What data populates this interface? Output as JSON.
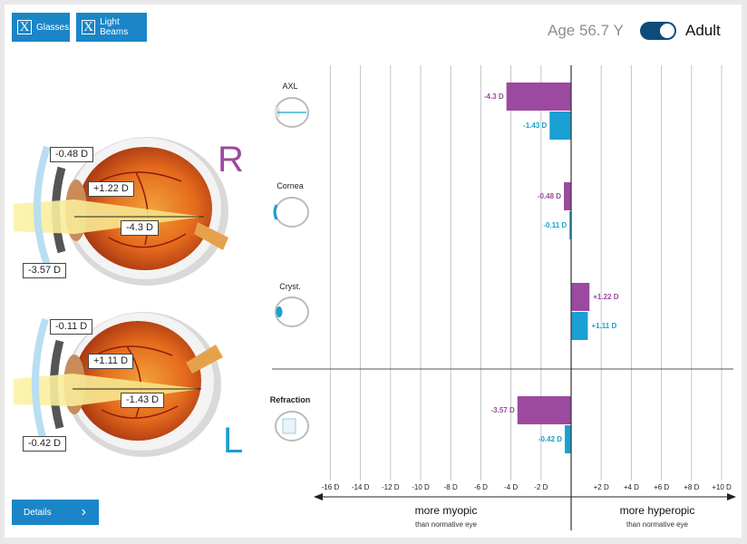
{
  "toolbar": {
    "glasses_label": "Glasses",
    "light_beams_label": "Light Beams",
    "toggle_glyph": "X"
  },
  "header": {
    "age_label": "Age 56.7 Y",
    "mode_label": "Adult",
    "mode_on": true
  },
  "eyes": {
    "right": {
      "letter": "R",
      "letter_color": "#9b4a9f",
      "cornea_label": "-0.48 D",
      "lens_label": "+1.22 D",
      "axial_label": "-4.3 D",
      "refraction_label": "-3.57 D"
    },
    "left": {
      "letter": "L",
      "letter_color": "#1a9fd0",
      "cornea_label": "-0.11 D",
      "lens_label": "+1.11 D",
      "axial_label": "-1.43 D",
      "refraction_label": "-0.42 D"
    }
  },
  "chart_data": {
    "type": "bar",
    "orientation": "horizontal",
    "categories": [
      "AXL",
      "Cornea",
      "Cryst.",
      "Refraction"
    ],
    "series": [
      {
        "eye": "R",
        "color": "#9b4a9f",
        "values": [
          -4.3,
          -0.48,
          1.22,
          -3.57
        ],
        "labels": [
          "-4.3 D",
          "-0.48 D",
          "+1.22 D",
          "-3.57 D"
        ]
      },
      {
        "eye": "L",
        "color": "#1aa0d2",
        "values": [
          -1.43,
          -0.11,
          1.11,
          -0.42
        ],
        "labels": [
          "-1.43 D",
          "-0.11 D",
          "+1.11 D",
          "-0.42 D"
        ]
      }
    ],
    "xlim": [
      -17,
      11
    ],
    "ticks": [
      -16,
      -14,
      -12,
      -10,
      -8,
      -6,
      -4,
      -2,
      2,
      4,
      6,
      8,
      10
    ],
    "tick_labels": [
      "-16 D",
      "-14 D",
      "-12 D",
      "-10 D",
      "-8 D",
      "-6 D",
      "-4 D",
      "-2 D",
      "+2 D",
      "+4 D",
      "+6 D",
      "+8 D",
      "+10 D"
    ],
    "gridlines": true,
    "left_caption": "more myopic",
    "left_subcaption": "than normative eye",
    "right_caption": "more hyperopic",
    "right_subcaption": "than normative eye"
  },
  "footer": {
    "details_label": "Details",
    "details_arrow": "›"
  }
}
